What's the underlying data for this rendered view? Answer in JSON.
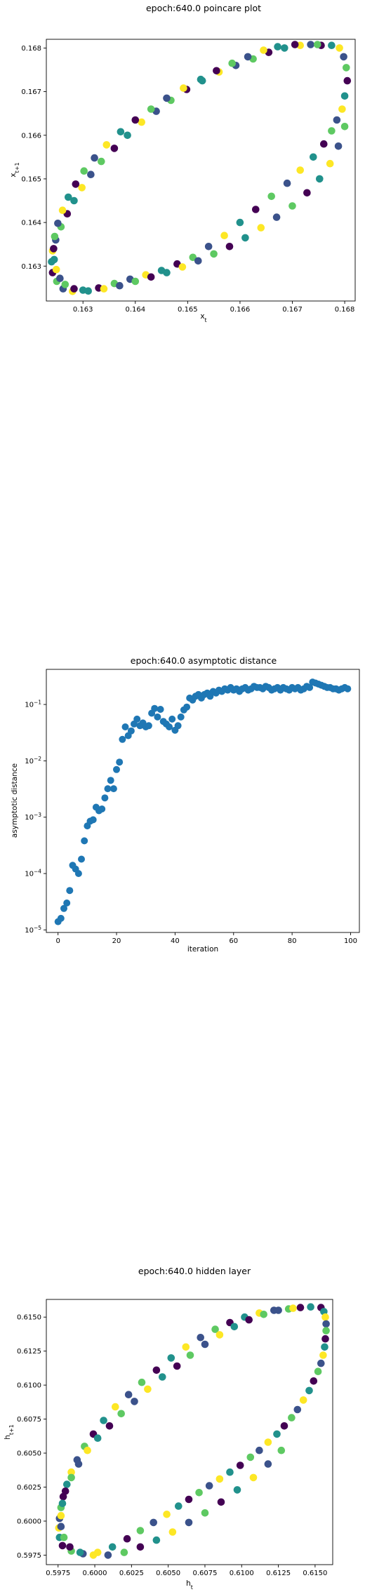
{
  "colors": {
    "viridis": [
      "#440154",
      "#3b528b",
      "#21918c",
      "#5ec962",
      "#fde725"
    ],
    "series": "#1f77b4"
  },
  "chart_data": [
    {
      "type": "scatter",
      "title": "epoch:640.0 poincare plot",
      "xlabel": "x_t",
      "ylabel": "x_{t+1}",
      "colormap": "viridis",
      "xlim": [
        0.1623,
        0.1682
      ],
      "ylim": [
        0.1622,
        0.1682
      ],
      "xticks": [
        "0.163",
        "0.164",
        "0.165",
        "0.166",
        "0.167",
        "0.168"
      ],
      "yticks": [
        "0.163",
        "0.164",
        "0.165",
        "0.166",
        "0.167",
        "0.168"
      ],
      "grid": false,
      "points": [
        [
          0.16755,
          0.16806
        ],
        [
          0.16775,
          0.16806
        ],
        [
          0.1679,
          0.168
        ],
        [
          0.16798,
          0.1678
        ],
        [
          0.16803,
          0.16755
        ],
        [
          0.16805,
          0.16725
        ],
        [
          0.168,
          0.1669
        ],
        [
          0.16795,
          0.1666
        ],
        [
          0.16785,
          0.16635
        ],
        [
          0.16775,
          0.1661
        ],
        [
          0.1676,
          0.1658
        ],
        [
          0.1674,
          0.1655
        ],
        [
          0.16715,
          0.1652
        ],
        [
          0.1669,
          0.1649
        ],
        [
          0.1666,
          0.1646
        ],
        [
          0.1663,
          0.1643
        ],
        [
          0.166,
          0.164
        ],
        [
          0.1657,
          0.1637
        ],
        [
          0.1654,
          0.16345
        ],
        [
          0.1651,
          0.1632
        ],
        [
          0.1648,
          0.16305
        ],
        [
          0.1645,
          0.1629
        ],
        [
          0.1642,
          0.1628
        ],
        [
          0.1639,
          0.1627
        ],
        [
          0.1636,
          0.1626
        ],
        [
          0.1633,
          0.1625
        ],
        [
          0.163,
          0.16245
        ],
        [
          0.1628,
          0.16242
        ],
        [
          0.16262,
          0.16248
        ],
        [
          0.1625,
          0.16265
        ],
        [
          0.16242,
          0.16285
        ],
        [
          0.1624,
          0.1631
        ],
        [
          0.16242,
          0.16335
        ],
        [
          0.16248,
          0.1636
        ],
        [
          0.16258,
          0.1639
        ],
        [
          0.1627,
          0.1642
        ],
        [
          0.16283,
          0.1645
        ],
        [
          0.16298,
          0.1648
        ],
        [
          0.16315,
          0.1651
        ],
        [
          0.16335,
          0.1654
        ],
        [
          0.1636,
          0.1657
        ],
        [
          0.16385,
          0.166
        ],
        [
          0.16412,
          0.1663
        ],
        [
          0.1644,
          0.16655
        ],
        [
          0.16468,
          0.1668
        ],
        [
          0.16498,
          0.16705
        ],
        [
          0.16528,
          0.16725
        ],
        [
          0.1656,
          0.16745
        ],
        [
          0.16592,
          0.1676
        ],
        [
          0.16625,
          0.16775
        ],
        [
          0.16655,
          0.1679
        ],
        [
          0.16685,
          0.168
        ],
        [
          0.16715,
          0.16806
        ],
        [
          0.16735,
          0.16808
        ],
        [
          0.16748,
          0.16808
        ],
        [
          0.16705,
          0.16808
        ],
        [
          0.16672,
          0.16803
        ],
        [
          0.16645,
          0.16795
        ],
        [
          0.16615,
          0.1678
        ],
        [
          0.16585,
          0.16765
        ],
        [
          0.16555,
          0.16748
        ],
        [
          0.16525,
          0.16728
        ],
        [
          0.16492,
          0.16708
        ],
        [
          0.1646,
          0.16685
        ],
        [
          0.1643,
          0.1666
        ],
        [
          0.164,
          0.16635
        ],
        [
          0.16372,
          0.16608
        ],
        [
          0.16345,
          0.16578
        ],
        [
          0.16322,
          0.16548
        ],
        [
          0.16302,
          0.16518
        ],
        [
          0.16286,
          0.16488
        ],
        [
          0.16272,
          0.16458
        ],
        [
          0.16261,
          0.16428
        ],
        [
          0.16252,
          0.16398
        ],
        [
          0.16246,
          0.16368
        ],
        [
          0.16244,
          0.1634
        ],
        [
          0.16245,
          0.16315
        ],
        [
          0.16249,
          0.16292
        ],
        [
          0.16256,
          0.16272
        ],
        [
          0.16266,
          0.16258
        ],
        [
          0.16283,
          0.16248
        ],
        [
          0.1631,
          0.16243
        ],
        [
          0.1634,
          0.16248
        ],
        [
          0.1637,
          0.16255
        ],
        [
          0.164,
          0.16265
        ],
        [
          0.1643,
          0.16275
        ],
        [
          0.1646,
          0.16285
        ],
        [
          0.1649,
          0.16298
        ],
        [
          0.1652,
          0.16312
        ],
        [
          0.1655,
          0.16328
        ],
        [
          0.1658,
          0.16345
        ],
        [
          0.1661,
          0.16365
        ],
        [
          0.1664,
          0.16388
        ],
        [
          0.1667,
          0.16412
        ],
        [
          0.167,
          0.16438
        ],
        [
          0.16728,
          0.16468
        ],
        [
          0.16752,
          0.165
        ],
        [
          0.16772,
          0.16535
        ],
        [
          0.16788,
          0.16575
        ],
        [
          0.168,
          0.1662
        ]
      ]
    },
    {
      "type": "scatter",
      "title": "epoch:640.0 asymptotic distance",
      "xlabel": "iteration",
      "ylabel": "asymptotic distance",
      "yscale": "log",
      "xlim": [
        -4,
        103
      ],
      "ylim": [
        9e-06,
        0.42
      ],
      "xticks": [
        "0",
        "20",
        "40",
        "60",
        "80",
        "100"
      ],
      "yticks": [
        "10^-5",
        "10^-4",
        "10^-3",
        "10^-2",
        "10^-1"
      ],
      "grid": false,
      "x": [
        0,
        1,
        2,
        3,
        4,
        5,
        6,
        7,
        8,
        9,
        10,
        11,
        12,
        13,
        14,
        15,
        16,
        17,
        18,
        19,
        20,
        21,
        22,
        23,
        24,
        25,
        26,
        27,
        28,
        29,
        30,
        31,
        32,
        33,
        34,
        35,
        36,
        37,
        38,
        39,
        40,
        41,
        42,
        43,
        44,
        45,
        46,
        47,
        48,
        49,
        50,
        51,
        52,
        53,
        54,
        55,
        56,
        57,
        58,
        59,
        60,
        61,
        62,
        63,
        64,
        65,
        66,
        67,
        68,
        69,
        70,
        71,
        72,
        73,
        74,
        75,
        76,
        77,
        78,
        79,
        80,
        81,
        82,
        83,
        84,
        85,
        86,
        87,
        88,
        89,
        90,
        91,
        92,
        93,
        94,
        95,
        96,
        97,
        98,
        99
      ],
      "y": [
        1.4e-05,
        1.6e-05,
        2.4e-05,
        3e-05,
        5e-05,
        0.00014,
        0.00012,
        0.0001,
        0.00018,
        0.00038,
        0.0007,
        0.00085,
        0.0009,
        0.0015,
        0.0013,
        0.0014,
        0.0022,
        0.0032,
        0.0045,
        0.0032,
        0.007,
        0.0095,
        0.024,
        0.04,
        0.028,
        0.034,
        0.045,
        0.055,
        0.042,
        0.047,
        0.04,
        0.042,
        0.07,
        0.085,
        0.06,
        0.082,
        0.05,
        0.045,
        0.04,
        0.055,
        0.035,
        0.042,
        0.06,
        0.08,
        0.09,
        0.13,
        0.12,
        0.14,
        0.15,
        0.13,
        0.15,
        0.16,
        0.14,
        0.17,
        0.16,
        0.18,
        0.17,
        0.19,
        0.18,
        0.2,
        0.18,
        0.19,
        0.17,
        0.19,
        0.2,
        0.18,
        0.19,
        0.21,
        0.2,
        0.2,
        0.19,
        0.21,
        0.2,
        0.18,
        0.19,
        0.2,
        0.18,
        0.2,
        0.19,
        0.18,
        0.2,
        0.19,
        0.2,
        0.18,
        0.19,
        0.21,
        0.2,
        0.25,
        0.24,
        0.23,
        0.22,
        0.21,
        0.2,
        0.2,
        0.19,
        0.19,
        0.18,
        0.19,
        0.2,
        0.19
      ]
    },
    {
      "type": "scatter",
      "title": "epoch:640.0 hidden layer",
      "xlabel": "h_t",
      "ylabel": "h_{t+1}",
      "colormap": "viridis",
      "xlim": [
        0.5967,
        0.6162
      ],
      "ylim": [
        0.5968,
        0.6163
      ],
      "xticks": [
        "0.5975",
        "0.6000",
        "0.6025",
        "0.6050",
        "0.6075",
        "0.6100",
        "0.6125",
        "0.6150"
      ],
      "yticks": [
        "0.5975",
        "0.6000",
        "0.6025",
        "0.6050",
        "0.6075",
        "0.6100",
        "0.6125",
        "0.6150"
      ],
      "grid": false,
      "points": [
        [
          0.6154,
          0.6157
        ],
        [
          0.6156,
          0.6154
        ],
        [
          0.6157,
          0.615
        ],
        [
          0.61575,
          0.6145
        ],
        [
          0.61575,
          0.614
        ],
        [
          0.6157,
          0.6134
        ],
        [
          0.61565,
          0.6128
        ],
        [
          0.61555,
          0.6122
        ],
        [
          0.6154,
          0.6116
        ],
        [
          0.6152,
          0.611
        ],
        [
          0.6149,
          0.6103
        ],
        [
          0.6146,
          0.6096
        ],
        [
          0.6142,
          0.6089
        ],
        [
          0.6138,
          0.6082
        ],
        [
          0.6134,
          0.6076
        ],
        [
          0.6129,
          0.607
        ],
        [
          0.6124,
          0.6064
        ],
        [
          0.6118,
          0.6058
        ],
        [
          0.6112,
          0.6052
        ],
        [
          0.6106,
          0.6047
        ],
        [
          0.6099,
          0.6041
        ],
        [
          0.6092,
          0.6036
        ],
        [
          0.6085,
          0.6031
        ],
        [
          0.6078,
          0.6026
        ],
        [
          0.6071,
          0.6021
        ],
        [
          0.6064,
          0.6016
        ],
        [
          0.6057,
          0.6011
        ],
        [
          0.6049,
          0.6005
        ],
        [
          0.604,
          0.5999
        ],
        [
          0.6031,
          0.5993
        ],
        [
          0.6022,
          0.5987
        ],
        [
          0.6012,
          0.5981
        ],
        [
          0.6002,
          0.5977
        ],
        [
          0.5992,
          0.5976
        ],
        [
          0.5984,
          0.5978
        ],
        [
          0.5978,
          0.5982
        ],
        [
          0.5976,
          0.5988
        ],
        [
          0.59755,
          0.5995
        ],
        [
          0.5976,
          0.6002
        ],
        [
          0.5977,
          0.601
        ],
        [
          0.59785,
          0.6018
        ],
        [
          0.5981,
          0.6027
        ],
        [
          0.5984,
          0.6036
        ],
        [
          0.5988,
          0.6045
        ],
        [
          0.5993,
          0.6055
        ],
        [
          0.5999,
          0.6064
        ],
        [
          0.6006,
          0.6074
        ],
        [
          0.6014,
          0.6084
        ],
        [
          0.6023,
          0.6093
        ],
        [
          0.6032,
          0.6102
        ],
        [
          0.6042,
          0.6111
        ],
        [
          0.6052,
          0.612
        ],
        [
          0.6062,
          0.6128
        ],
        [
          0.6072,
          0.6135
        ],
        [
          0.6082,
          0.6141
        ],
        [
          0.6092,
          0.6146
        ],
        [
          0.6102,
          0.615
        ],
        [
          0.6112,
          0.6153
        ],
        [
          0.6122,
          0.6155
        ],
        [
          0.6132,
          0.6156
        ],
        [
          0.614,
          0.6157
        ],
        [
          0.6147,
          0.61575
        ],
        [
          0.6135,
          0.61565
        ],
        [
          0.6125,
          0.6155
        ],
        [
          0.6115,
          0.6152
        ],
        [
          0.6105,
          0.6148
        ],
        [
          0.6095,
          0.6143
        ],
        [
          0.6085,
          0.6137
        ],
        [
          0.6075,
          0.613
        ],
        [
          0.6065,
          0.6122
        ],
        [
          0.6056,
          0.6114
        ],
        [
          0.6046,
          0.6106
        ],
        [
          0.6036,
          0.6097
        ],
        [
          0.6027,
          0.6088
        ],
        [
          0.6018,
          0.6079
        ],
        [
          0.601,
          0.607
        ],
        [
          0.6002,
          0.6061
        ],
        [
          0.5995,
          0.6052
        ],
        [
          0.5989,
          0.6042
        ],
        [
          0.5984,
          0.6032
        ],
        [
          0.598,
          0.6022
        ],
        [
          0.5978,
          0.6013
        ],
        [
          0.5977,
          0.6004
        ],
        [
          0.5977,
          0.5996
        ],
        [
          0.5979,
          0.5988
        ],
        [
          0.5983,
          0.5981
        ],
        [
          0.599,
          0.5977
        ],
        [
          0.5999,
          0.5975
        ],
        [
          0.6009,
          0.5975
        ],
        [
          0.602,
          0.5977
        ],
        [
          0.6031,
          0.5981
        ],
        [
          0.6042,
          0.5986
        ],
        [
          0.6053,
          0.5992
        ],
        [
          0.6064,
          0.5999
        ],
        [
          0.6075,
          0.6006
        ],
        [
          0.6086,
          0.6014
        ],
        [
          0.6097,
          0.6023
        ],
        [
          0.6108,
          0.6032
        ],
        [
          0.6118,
          0.6042
        ],
        [
          0.6127,
          0.6052
        ]
      ]
    }
  ]
}
